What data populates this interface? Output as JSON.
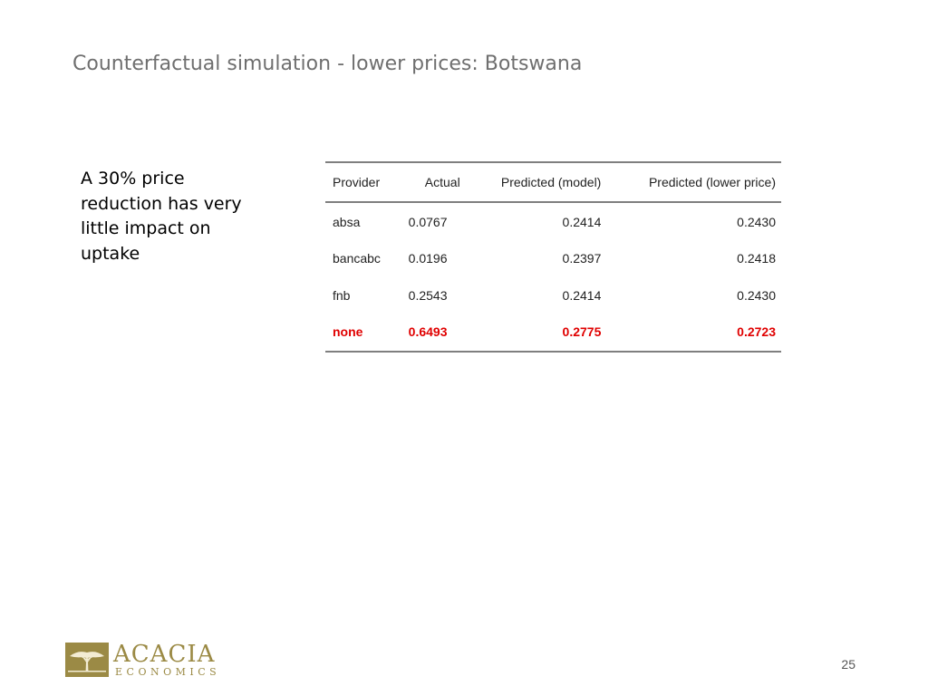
{
  "slide": {
    "title": "Counterfactual simulation - lower prices: Botswana",
    "bullet_text": "A 30% price reduction has very little impact on uptake",
    "page_number": "25"
  },
  "table": {
    "headers": [
      "Provider",
      "Actual",
      "Predicted (model)",
      "Predicted (lower price)"
    ],
    "rows": [
      [
        "absa",
        "0.0767",
        "0.2414",
        "0.2430"
      ],
      [
        "bancabc",
        "0.0196",
        "0.2397",
        "0.2418"
      ],
      [
        "fnb",
        "0.2543",
        "0.2414",
        "0.2430"
      ],
      [
        "none",
        "0.6493",
        "0.2775",
        "0.2723"
      ]
    ],
    "highlight_row": 3,
    "highlight_color": "#e00000"
  },
  "logo": {
    "wordmark": "ACACIA",
    "subtitle": "ECONOMICS",
    "color": "#9b8a45"
  }
}
